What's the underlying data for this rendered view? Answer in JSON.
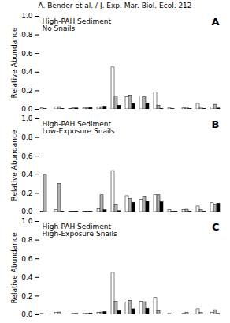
{
  "chart_data": [
    {
      "type": "bar",
      "subtitle": "A. Bender et al. / J. Exp. Mar. Biol. Ecol. 212",
      "title": "High-PAH Sediment\nNo Snails",
      "annotations": [
        "A"
      ],
      "y_label": "Relative Abundance",
      "categories": [
        null,
        null,
        null,
        null,
        null,
        null,
        null,
        null,
        null,
        null,
        null,
        null,
        null
      ],
      "series": [
        {
          "color": "white",
          "values": [
            0.01,
            0.02,
            0.005,
            0.01,
            0.02,
            0.45,
            0.13,
            0.14,
            0.18,
            0.01,
            0.01,
            0.06,
            0.02
          ]
        },
        {
          "color": "#b0b0b0",
          "values": [
            0.005,
            0.025,
            0.01,
            0.01,
            0.025,
            0.14,
            0.15,
            0.135,
            0.04,
            0.005,
            0.02,
            0.02,
            0.05
          ]
        },
        {
          "color": "black",
          "values": [
            0.0,
            0.005,
            0.01,
            0.015,
            0.03,
            0.04,
            0.06,
            0.065,
            0.005,
            0.0,
            0.005,
            0.005,
            0.01
          ]
        }
      ],
      "ylim": [
        0.0,
        1.0
      ],
      "yticks": [
        {
          "value": 0.0,
          "label": "0.0"
        },
        0.2,
        0.4,
        0.6,
        0.8,
        {
          "value": 1.0,
          "label": "1.0"
        }
      ],
      "tick_labels": "y"
    },
    {
      "type": "bar",
      "title": "High-PAH Sediment\nLow-Exposure Snails",
      "annotations": [
        "B"
      ],
      "y_label": "Relative Abundance",
      "categories": [
        null,
        null,
        null,
        null,
        null,
        null,
        null,
        null,
        null,
        null,
        null,
        null,
        null
      ],
      "series": [
        {
          "color": "white",
          "values": [
            0.005,
            0.02,
            0.005,
            0.005,
            0.03,
            0.44,
            0.17,
            0.13,
            0.18,
            0.02,
            0.02,
            0.06,
            0.095
          ]
        },
        {
          "color": "#b0b0b0",
          "values": [
            0.4,
            0.3,
            0.005,
            0.005,
            0.18,
            0.08,
            0.14,
            0.165,
            0.18,
            0.005,
            0.025,
            0.02,
            0.08
          ]
        },
        {
          "color": "black",
          "values": [
            0.0,
            0.005,
            0.005,
            0.005,
            0.02,
            0.01,
            0.1,
            0.11,
            0.105,
            0.005,
            0.005,
            0.005,
            0.09
          ]
        }
      ],
      "ylim": [
        0.0,
        1.0
      ],
      "yticks": [
        {
          "value": 0.0,
          "label": "0.0"
        },
        0.2,
        0.4,
        0.6,
        0.8,
        {
          "value": 1.0,
          "label": "1.0"
        }
      ],
      "tick_labels": "y"
    },
    {
      "type": "bar",
      "title": "High-PAH Sediment\nHigh-Exposure Snails",
      "annotations": [
        "C"
      ],
      "y_label": "Relative Abundance",
      "categories": [
        null,
        null,
        null,
        null,
        null,
        null,
        null,
        null,
        null,
        null,
        null,
        null,
        null
      ],
      "series": [
        {
          "color": "white",
          "values": [
            0.01,
            0.02,
            0.005,
            0.01,
            0.02,
            0.45,
            0.13,
            0.14,
            0.18,
            0.01,
            0.01,
            0.06,
            0.02
          ]
        },
        {
          "color": "#b0b0b0",
          "values": [
            0.005,
            0.025,
            0.01,
            0.01,
            0.025,
            0.14,
            0.15,
            0.135,
            0.04,
            0.005,
            0.02,
            0.02,
            0.05
          ]
        },
        {
          "color": "black",
          "values": [
            0.0,
            0.005,
            0.01,
            0.015,
            0.03,
            0.04,
            0.06,
            0.065,
            0.005,
            0.0,
            0.005,
            0.005,
            0.01
          ]
        }
      ],
      "ylim": [
        0.0,
        1.0
      ],
      "yticks": [
        {
          "value": 0.0,
          "label": "0.0"
        },
        0.2,
        0.4,
        0.6,
        0.8,
        {
          "value": 1.0,
          "label": "1.0"
        }
      ],
      "tick_labels": "y"
    }
  ]
}
